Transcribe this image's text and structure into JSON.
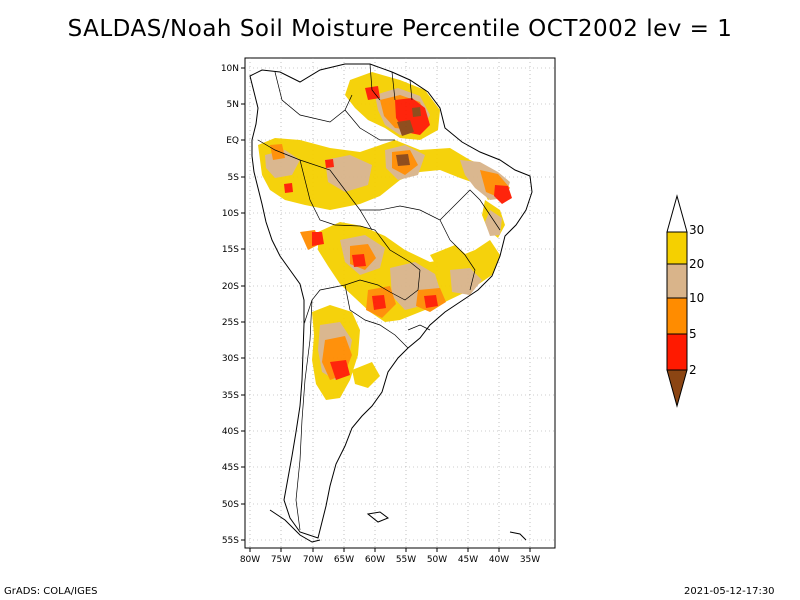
{
  "header": {
    "title": "SALDAS/Noah Soil Moisture Percentile OCT2002 lev = 1"
  },
  "footer": {
    "left": "GrADS: COLA/IGES",
    "right": "2021-05-12-17:30"
  },
  "map": {
    "lat_labels": [
      "10N",
      "5N",
      "EQ",
      "5S",
      "10S",
      "15S",
      "20S",
      "25S",
      "30S",
      "35S",
      "40S",
      "45S",
      "50S",
      "55S"
    ],
    "lon_labels": [
      "80W",
      "75W",
      "70W",
      "65W",
      "60W",
      "55W",
      "50W",
      "45W",
      "40W",
      "35W"
    ]
  },
  "legend": {
    "labels": [
      "30",
      "20",
      "10",
      "5",
      "2"
    ],
    "colors": [
      "#ffffff",
      "#f5d000",
      "#d9b48a",
      "#ff8c00",
      "#ff1a00",
      "#8b4513"
    ]
  }
}
